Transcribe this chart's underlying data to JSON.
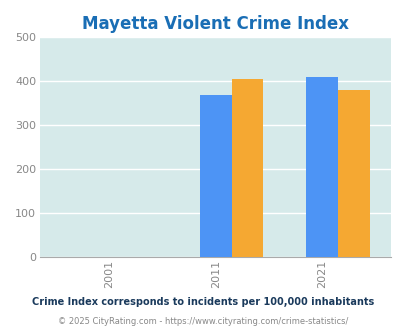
{
  "title": "Mayetta Violent Crime Index",
  "title_color": "#1a6eb5",
  "years": [
    2001,
    2011,
    2021
  ],
  "series": {
    "Mayetta": {
      "values": [
        0,
        0,
        0
      ],
      "color": "#8bc34a"
    },
    "Kansas": {
      "values": [
        0,
        370,
        410
      ],
      "color": "#4d94f5"
    },
    "National": {
      "values": [
        0,
        405,
        380
      ],
      "color": "#f5a832"
    }
  },
  "ylim": [
    0,
    500
  ],
  "yticks": [
    0,
    100,
    200,
    300,
    400,
    500
  ],
  "fig_bg_color": "#ffffff",
  "plot_bg_color": "#d6eaea",
  "grid_color": "#ffffff",
  "footnote1": "Crime Index corresponds to incidents per 100,000 inhabitants",
  "footnote2": "© 2025 CityRating.com - https://www.cityrating.com/crime-statistics/",
  "footnote1_color": "#1a3a5c",
  "footnote2_color": "#888888",
  "bar_width": 0.3
}
